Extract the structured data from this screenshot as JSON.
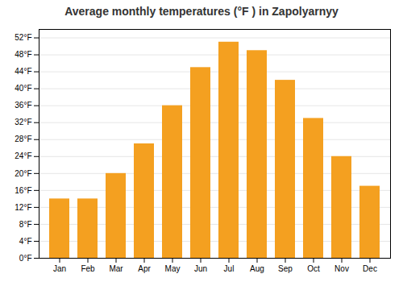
{
  "chart_data": {
    "type": "bar",
    "title": "Average monthly temperatures (°F ) in Zapolyarnyy",
    "categories": [
      "Jan",
      "Feb",
      "Mar",
      "Apr",
      "May",
      "Jun",
      "Jul",
      "Aug",
      "Sep",
      "Oct",
      "Nov",
      "Dec"
    ],
    "values": [
      14,
      14,
      20,
      27,
      36,
      45,
      51,
      49,
      42,
      33,
      24,
      17
    ],
    "color": "#F4A020",
    "ylim": [
      0,
      54
    ],
    "yticks": [
      {
        "value": 0,
        "label": "0°F"
      },
      {
        "value": 4,
        "label": "4°F"
      },
      {
        "value": 8,
        "label": "8°F"
      },
      {
        "value": 12,
        "label": "12°F"
      },
      {
        "value": 16,
        "label": "16°F"
      },
      {
        "value": 20,
        "label": "20°F"
      },
      {
        "value": 24,
        "label": "24°F"
      },
      {
        "value": 28,
        "label": "28°F"
      },
      {
        "value": 32,
        "label": "32°F"
      },
      {
        "value": 36,
        "label": "36°F"
      },
      {
        "value": 40,
        "label": "40°F"
      },
      {
        "value": 44,
        "label": "44°F"
      },
      {
        "value": 48,
        "label": "48°F"
      },
      {
        "value": 52,
        "label": "52°F"
      }
    ],
    "grid": true
  }
}
